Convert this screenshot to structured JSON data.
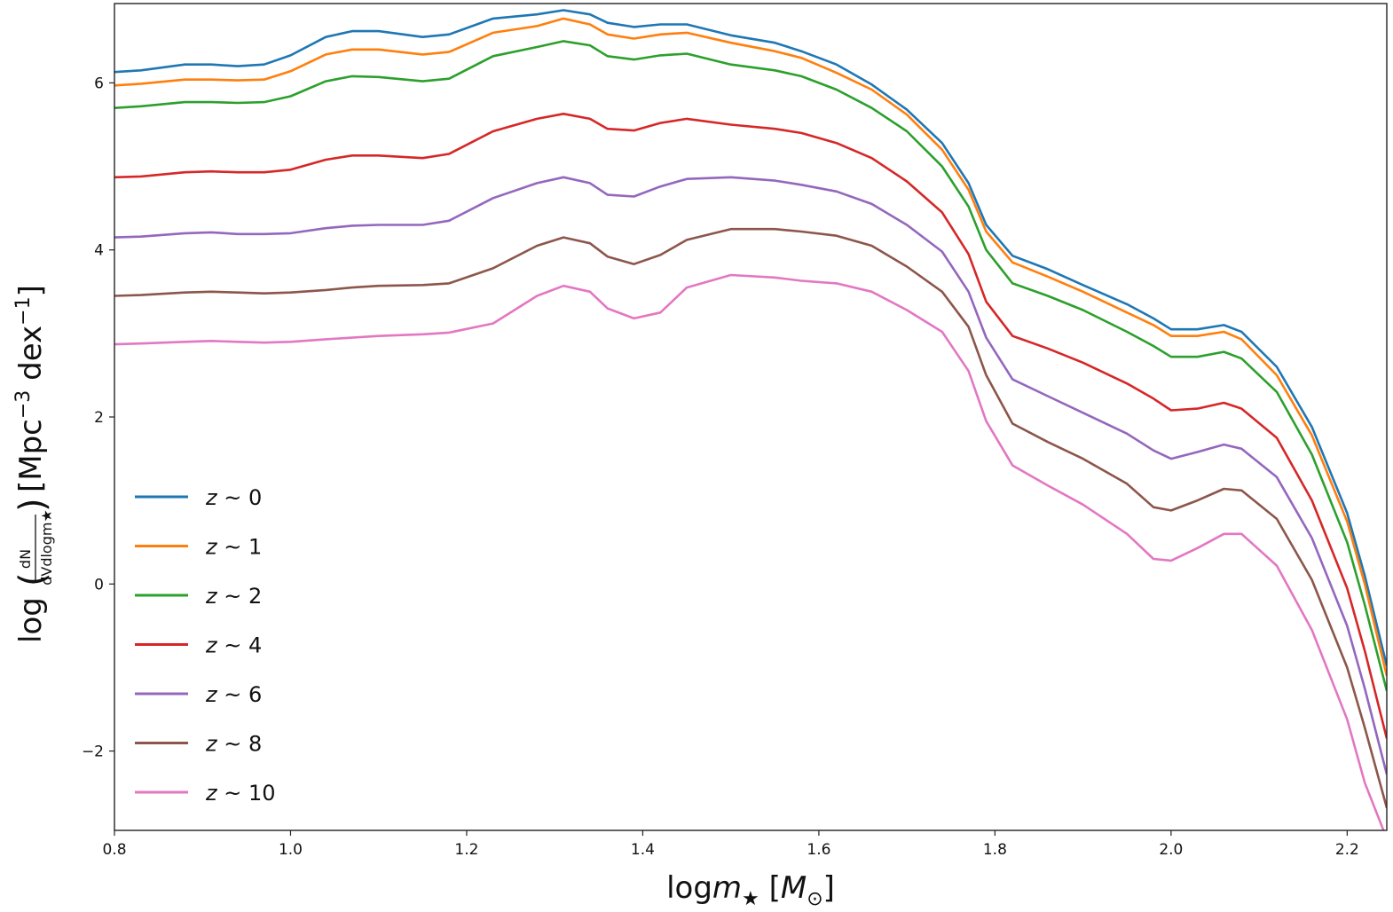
{
  "chart_data": {
    "type": "line",
    "xlabel": "logm★ [M⊙]",
    "ylabel": "log(dN/dVdlogm★) [Mpc⁻³ dex⁻¹]",
    "xlim": [
      0.8,
      2.245
    ],
    "ylim": [
      -2.95,
      6.95
    ],
    "xticks": [
      0.8,
      1.0,
      1.2,
      1.4,
      1.6,
      1.8,
      2.0,
      2.2
    ],
    "xtick_labels": [
      "0.8",
      "1.0",
      "1.2",
      "1.4",
      "1.6",
      "1.8",
      "2.0",
      "2.2"
    ],
    "yticks": [
      -2,
      0,
      2,
      4,
      6
    ],
    "ytick_labels": [
      "−2",
      "0",
      "2",
      "4",
      "6"
    ],
    "grid": false,
    "legend_position": "lower-left",
    "x": [
      0.8,
      0.83,
      0.88,
      0.91,
      0.94,
      0.97,
      1.0,
      1.04,
      1.07,
      1.1,
      1.15,
      1.18,
      1.23,
      1.28,
      1.31,
      1.34,
      1.36,
      1.39,
      1.42,
      1.45,
      1.5,
      1.55,
      1.58,
      1.62,
      1.66,
      1.7,
      1.74,
      1.77,
      1.79,
      1.82,
      1.86,
      1.9,
      1.95,
      1.98,
      2.0,
      2.03,
      2.06,
      2.08,
      2.12,
      2.16,
      2.2,
      2.22,
      2.245
    ],
    "series": [
      {
        "name": "z ~ 0",
        "color": "#1f77b4",
        "values": [
          6.13,
          6.15,
          6.22,
          6.22,
          6.2,
          6.22,
          6.33,
          6.55,
          6.62,
          6.62,
          6.55,
          6.58,
          6.77,
          6.82,
          6.87,
          6.82,
          6.72,
          6.67,
          6.7,
          6.7,
          6.57,
          6.48,
          6.38,
          6.22,
          5.98,
          5.68,
          5.28,
          4.8,
          4.3,
          3.93,
          3.77,
          3.58,
          3.35,
          3.18,
          3.05,
          3.05,
          3.1,
          3.02,
          2.6,
          1.88,
          0.85,
          0.1,
          -0.98
        ]
      },
      {
        "name": "z ~ 1",
        "color": "#ff7f0e",
        "values": [
          5.97,
          5.99,
          6.04,
          6.04,
          6.03,
          6.04,
          6.14,
          6.34,
          6.4,
          6.4,
          6.34,
          6.37,
          6.6,
          6.68,
          6.77,
          6.7,
          6.58,
          6.53,
          6.58,
          6.6,
          6.48,
          6.38,
          6.3,
          6.12,
          5.92,
          5.62,
          5.2,
          4.72,
          4.22,
          3.85,
          3.68,
          3.5,
          3.25,
          3.1,
          2.97,
          2.97,
          3.02,
          2.93,
          2.5,
          1.78,
          0.75,
          0.0,
          -1.1
        ]
      },
      {
        "name": "z ~ 2",
        "color": "#2ca02c",
        "values": [
          5.7,
          5.72,
          5.77,
          5.77,
          5.76,
          5.77,
          5.84,
          6.02,
          6.08,
          6.07,
          6.02,
          6.05,
          6.32,
          6.43,
          6.5,
          6.45,
          6.32,
          6.28,
          6.33,
          6.35,
          6.22,
          6.15,
          6.08,
          5.92,
          5.7,
          5.42,
          5.0,
          4.52,
          4.0,
          3.6,
          3.45,
          3.28,
          3.02,
          2.85,
          2.72,
          2.72,
          2.78,
          2.7,
          2.3,
          1.55,
          0.5,
          -0.25,
          -1.28
        ]
      },
      {
        "name": "z ~ 4",
        "color": "#d62728",
        "values": [
          4.87,
          4.88,
          4.93,
          4.94,
          4.93,
          4.93,
          4.96,
          5.08,
          5.13,
          5.13,
          5.1,
          5.15,
          5.42,
          5.57,
          5.63,
          5.57,
          5.45,
          5.43,
          5.52,
          5.57,
          5.5,
          5.45,
          5.4,
          5.28,
          5.1,
          4.82,
          4.45,
          3.95,
          3.38,
          2.97,
          2.82,
          2.65,
          2.4,
          2.22,
          2.08,
          2.1,
          2.17,
          2.1,
          1.75,
          1.0,
          -0.05,
          -0.8,
          -1.85
        ]
      },
      {
        "name": "z ~ 6",
        "color": "#9467bd",
        "values": [
          4.15,
          4.16,
          4.2,
          4.21,
          4.19,
          4.19,
          4.2,
          4.26,
          4.29,
          4.3,
          4.3,
          4.35,
          4.62,
          4.8,
          4.87,
          4.8,
          4.66,
          4.64,
          4.76,
          4.85,
          4.87,
          4.83,
          4.78,
          4.7,
          4.55,
          4.3,
          3.98,
          3.5,
          2.95,
          2.45,
          2.25,
          2.05,
          1.8,
          1.6,
          1.5,
          1.58,
          1.67,
          1.62,
          1.28,
          0.55,
          -0.5,
          -1.25,
          -2.28
        ]
      },
      {
        "name": "z ~ 8",
        "color": "#8c564b",
        "values": [
          3.45,
          3.46,
          3.49,
          3.5,
          3.49,
          3.48,
          3.49,
          3.52,
          3.55,
          3.57,
          3.58,
          3.6,
          3.78,
          4.05,
          4.15,
          4.08,
          3.92,
          3.83,
          3.94,
          4.12,
          4.25,
          4.25,
          4.22,
          4.17,
          4.05,
          3.8,
          3.5,
          3.08,
          2.5,
          1.92,
          1.7,
          1.5,
          1.2,
          0.92,
          0.88,
          1.0,
          1.14,
          1.12,
          0.78,
          0.05,
          -1.0,
          -1.72,
          -2.68
        ]
      },
      {
        "name": "z ~ 10",
        "color": "#e377c2",
        "values": [
          2.87,
          2.88,
          2.9,
          2.91,
          2.9,
          2.89,
          2.9,
          2.93,
          2.95,
          2.97,
          2.99,
          3.01,
          3.12,
          3.45,
          3.57,
          3.5,
          3.3,
          3.18,
          3.25,
          3.55,
          3.7,
          3.67,
          3.63,
          3.6,
          3.5,
          3.28,
          3.02,
          2.55,
          1.95,
          1.42,
          1.18,
          0.95,
          0.6,
          0.3,
          0.28,
          0.43,
          0.6,
          0.6,
          0.22,
          -0.55,
          -1.62,
          -2.38,
          -3.05
        ]
      }
    ]
  }
}
